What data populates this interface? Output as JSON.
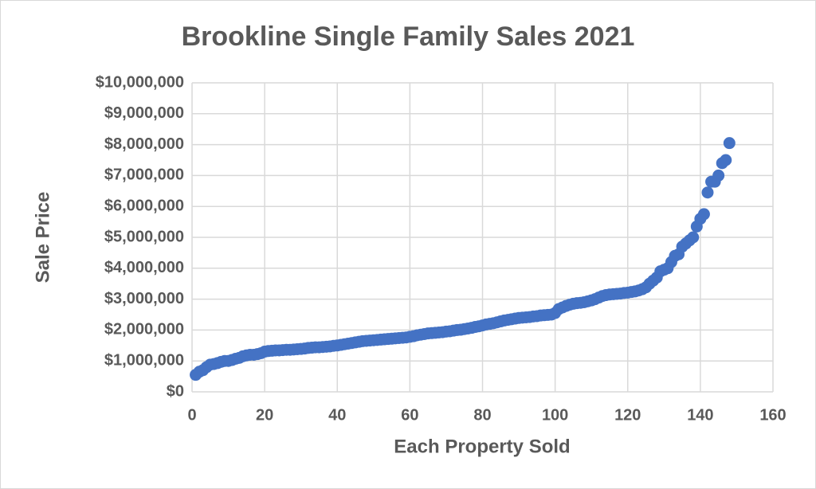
{
  "chart_data": {
    "type": "scatter",
    "title": "Brookline Single Family Sales 2021",
    "x_label": "Each Property Sold",
    "y_label": "Sale Price",
    "color": "#4472c4",
    "grid": true,
    "xlim": [
      0,
      160
    ],
    "xticks": [
      0,
      20,
      40,
      60,
      80,
      100,
      120,
      140,
      160
    ],
    "ylim": [
      0,
      10000000
    ],
    "yticks": [
      {
        "value": 0,
        "label": "$0"
      },
      {
        "value": 1000000,
        "label": "$1,000,000"
      },
      {
        "value": 2000000,
        "label": "$2,000,000"
      },
      {
        "value": 3000000,
        "label": "$3,000,000"
      },
      {
        "value": 4000000,
        "label": "$4,000,000"
      },
      {
        "value": 5000000,
        "label": "$5,000,000"
      },
      {
        "value": 6000000,
        "label": "$6,000,000"
      },
      {
        "value": 7000000,
        "label": "$7,000,000"
      },
      {
        "value": 8000000,
        "label": "$8,000,000"
      },
      {
        "value": 9000000,
        "label": "$9,000,000"
      },
      {
        "value": 10000000,
        "label": "$10,000,000"
      }
    ],
    "x": [
      1,
      2,
      3,
      4,
      5,
      6,
      7,
      8,
      9,
      10,
      11,
      12,
      13,
      14,
      15,
      16,
      17,
      18,
      19,
      20,
      21,
      22,
      23,
      24,
      25,
      26,
      27,
      28,
      29,
      30,
      31,
      32,
      33,
      34,
      35,
      36,
      37,
      38,
      39,
      40,
      41,
      42,
      43,
      44,
      45,
      46,
      47,
      48,
      49,
      50,
      51,
      52,
      53,
      54,
      55,
      56,
      57,
      58,
      59,
      60,
      61,
      62,
      63,
      64,
      65,
      66,
      67,
      68,
      69,
      70,
      71,
      72,
      73,
      74,
      75,
      76,
      77,
      78,
      79,
      80,
      81,
      82,
      83,
      84,
      85,
      86,
      87,
      88,
      89,
      90,
      91,
      92,
      93,
      94,
      95,
      96,
      97,
      98,
      99,
      100,
      101,
      102,
      103,
      104,
      105,
      106,
      107,
      108,
      109,
      110,
      111,
      112,
      113,
      114,
      115,
      116,
      117,
      118,
      119,
      120,
      121,
      122,
      123,
      124,
      125,
      126,
      127,
      128,
      129,
      130,
      131,
      132,
      133,
      134,
      135,
      136,
      137,
      138,
      139,
      140,
      141,
      142,
      143,
      144,
      145,
      146,
      147,
      148
    ],
    "values": [
      550000,
      650000,
      700000,
      800000,
      880000,
      900000,
      930000,
      970000,
      1000000,
      1000000,
      1030000,
      1070000,
      1100000,
      1150000,
      1180000,
      1200000,
      1200000,
      1220000,
      1250000,
      1300000,
      1320000,
      1330000,
      1340000,
      1340000,
      1350000,
      1360000,
      1360000,
      1370000,
      1380000,
      1390000,
      1400000,
      1420000,
      1430000,
      1440000,
      1440000,
      1450000,
      1460000,
      1470000,
      1490000,
      1500000,
      1520000,
      1540000,
      1560000,
      1580000,
      1600000,
      1620000,
      1640000,
      1650000,
      1660000,
      1670000,
      1680000,
      1690000,
      1700000,
      1710000,
      1720000,
      1730000,
      1740000,
      1750000,
      1760000,
      1780000,
      1800000,
      1830000,
      1850000,
      1870000,
      1890000,
      1900000,
      1910000,
      1920000,
      1930000,
      1950000,
      1960000,
      1980000,
      2000000,
      2010000,
      2030000,
      2050000,
      2070000,
      2100000,
      2120000,
      2150000,
      2180000,
      2200000,
      2220000,
      2250000,
      2280000,
      2310000,
      2330000,
      2350000,
      2370000,
      2390000,
      2400000,
      2410000,
      2420000,
      2440000,
      2450000,
      2470000,
      2480000,
      2490000,
      2500000,
      2550000,
      2680000,
      2730000,
      2780000,
      2820000,
      2850000,
      2870000,
      2880000,
      2900000,
      2930000,
      2960000,
      3000000,
      3050000,
      3100000,
      3130000,
      3150000,
      3160000,
      3170000,
      3180000,
      3200000,
      3210000,
      3230000,
      3250000,
      3280000,
      3320000,
      3380000,
      3500000,
      3600000,
      3700000,
      3900000,
      3950000,
      4000000,
      4200000,
      4400000,
      4450000,
      4700000,
      4800000,
      4900000,
      5000000,
      5350000,
      5600000,
      5750000,
      6450000,
      6800000,
      6800000,
      7000000,
      7400000,
      7500000,
      8050000
    ]
  }
}
